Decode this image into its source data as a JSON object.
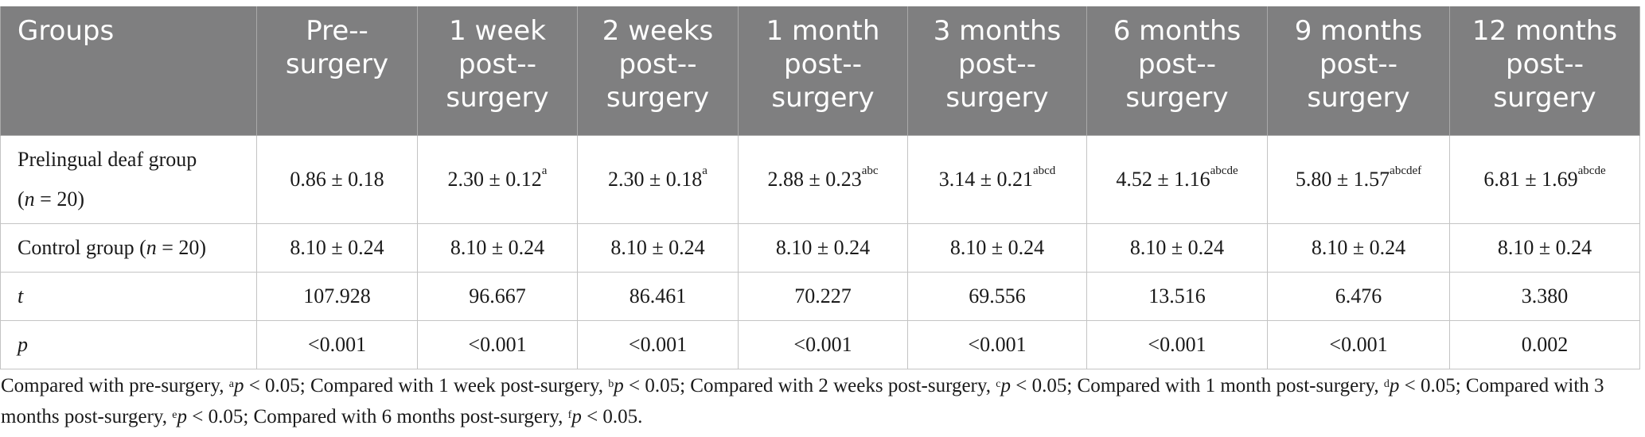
{
  "table": {
    "header": {
      "groups": "Groups",
      "pre": "Pre-­surgery",
      "w1": "1 week post-­surgery",
      "w2": "2 weeks post-­surgery",
      "m1": "1 month post-­surgery",
      "m3": "3 months post-­surgery",
      "m6": "6 months post-­surgery",
      "m9": "9 months post-­surgery",
      "m12": "12 months post-­surgery"
    },
    "prelingual": {
      "label_a": "Prelingual deaf group",
      "label_n": "n",
      "label_b": " = 20)",
      "label_open": "(",
      "pre": "0.86 ± 0.18",
      "w1": "2.30 ± 0.12",
      "w1_sup": "a",
      "w2": "2.30 ± 0.18",
      "w2_sup": "a",
      "m1": "2.88 ± 0.23",
      "m1_sup": "abc",
      "m3": "3.14 ± 0.21",
      "m3_sup": "abcd",
      "m6": "4.52 ± 1.16",
      "m6_sup": "abcde",
      "m9": "5.80 ± 1.57",
      "m9_sup": "abcdef",
      "m12": "6.81 ± 1.69",
      "m12_sup": "abcde"
    },
    "control": {
      "label_a": "Control group (",
      "label_n": "n",
      "label_b": " = 20)",
      "values": [
        "8.10 ± 0.24",
        "8.10 ± 0.24",
        "8.10 ± 0.24",
        "8.10 ± 0.24",
        "8.10 ± 0.24",
        "8.10 ± 0.24",
        "8.10 ± 0.24",
        "8.10 ± 0.24"
      ]
    },
    "t_row": {
      "label": "t",
      "values": [
        "107.928",
        "96.667",
        "86.461",
        "70.227",
        "69.556",
        "13.516",
        "6.476",
        "3.380"
      ]
    },
    "p_row": {
      "label": "p",
      "values": [
        "<0.001",
        "<0.001",
        "<0.001",
        "<0.001",
        "<0.001",
        "<0.001",
        "<0.001",
        "0.002"
      ]
    }
  },
  "footnote": {
    "s1": "Compared with pre-surgery, ",
    "a": "a",
    "p1": "p",
    "t1": " < 0.05; Compared with 1 week post-surgery, ",
    "b": "b",
    "p2": "p",
    "t2": " < 0.05; Compared with 2 weeks post-surgery, ",
    "c": "c",
    "p3": "p",
    "t3": " < 0.05; Compared with 1 month post-surgery, ",
    "d": "d",
    "p4": "p",
    "t4": " < 0.05; Compared with 3 months post-surgery, ",
    "e": "e",
    "p5": "p",
    "t5": " < 0.05; Compared with 6 months post-surgery, ",
    "f": "f",
    "p6": "p",
    "t6": " < 0.05."
  }
}
